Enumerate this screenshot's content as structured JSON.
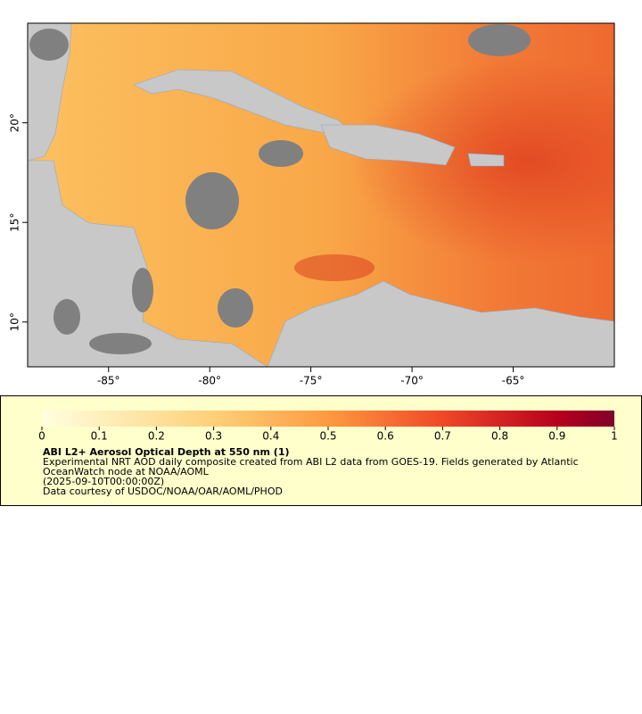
{
  "chart_data": {
    "type": "map",
    "title": "ABI L2+ Aerosol Optical Depth at 550 nm (1)",
    "notes": [
      "Experimental NRT AOD daily composite created from ABI L2 data from GOES-19. Fields generated by Atlantic OceanWatch node at NOAA/AOML",
      "(2025-09-10T00:00:00Z)",
      "Data courtesy of USDOC/NOAA/OAR/AOML/PHOD"
    ],
    "xlim": [
      -89,
      -60
    ],
    "ylim": [
      7.75,
      25
    ],
    "xticks": [
      {
        "value": -85,
        "label": "-85°"
      },
      {
        "value": -80,
        "label": "-80°"
      },
      {
        "value": -75,
        "label": "-75°"
      },
      {
        "value": -70,
        "label": "-70°"
      },
      {
        "value": -65,
        "label": "-65°"
      }
    ],
    "yticks": [
      {
        "value": 10,
        "label": "10°"
      },
      {
        "value": 15,
        "label": "15°"
      },
      {
        "value": 20,
        "label": "20°"
      }
    ],
    "colorbar": {
      "lim": [
        0,
        1
      ],
      "ticks": [
        0,
        0.1,
        0.2,
        0.3,
        0.4,
        0.5,
        0.6,
        0.7,
        0.8,
        0.9,
        1
      ]
    }
  }
}
